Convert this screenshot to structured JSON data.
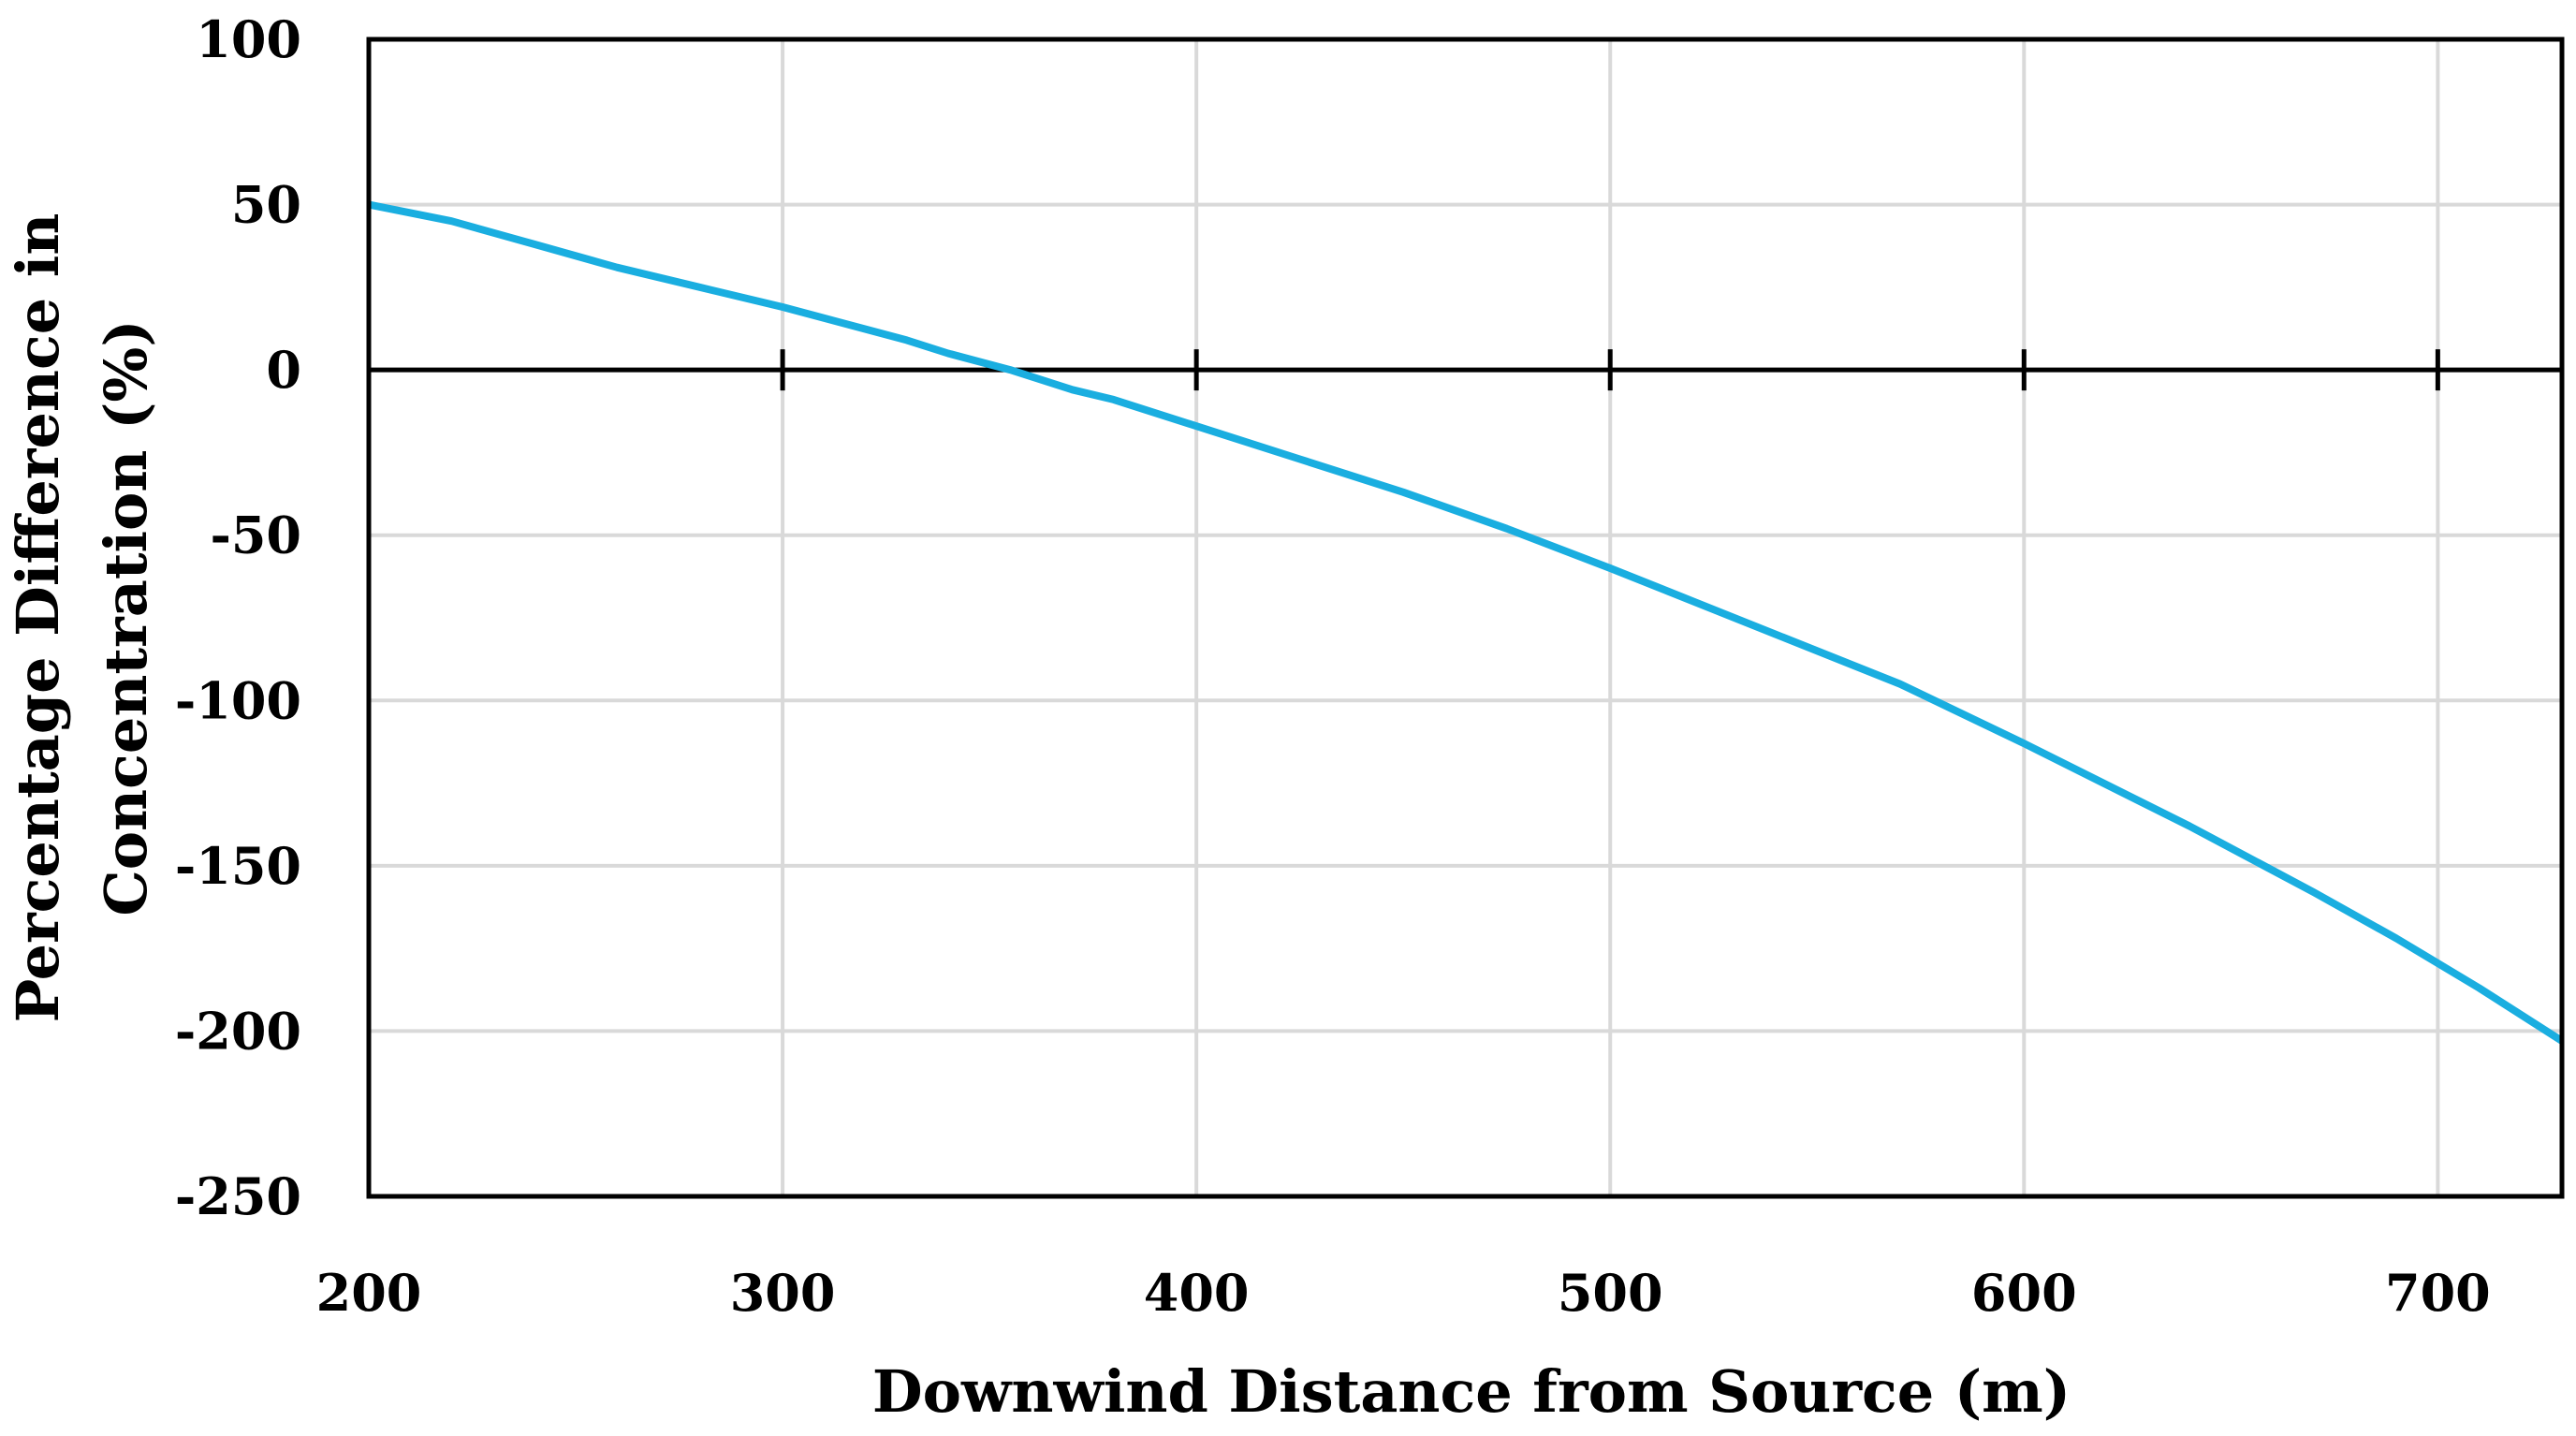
{
  "chart_data": {
    "type": "line",
    "title": "",
    "xlabel": "Downwind Distance from Source (m)",
    "ylabel_lines": [
      "Percentage Difference in",
      "Concentration (%)"
    ],
    "xlim": [
      200,
      730
    ],
    "ylim": [
      -250,
      100
    ],
    "x_ticks": [
      200,
      300,
      400,
      500,
      600,
      700
    ],
    "y_ticks": [
      100,
      50,
      0,
      -50,
      -100,
      -150,
      -200,
      -250
    ],
    "x_tick_labels": [
      "200",
      "300",
      "400",
      "500",
      "600",
      "700"
    ],
    "y_tick_labels": [
      "100",
      "50",
      "0",
      "-50",
      "-100",
      "-150",
      "-200",
      "-250"
    ],
    "grid": true,
    "legend": "none",
    "colors": {
      "series": "#1aaee0",
      "grid": "#d9d9d9",
      "axis": "#000000"
    },
    "series": [
      {
        "x": [
          200,
          220,
          240,
          260,
          280,
          300,
          330,
          340,
          355,
          370,
          380,
          400,
          425,
          450,
          475,
          500,
          520,
          540,
          570,
          600,
          640,
          670,
          690,
          710,
          730
        ],
        "y": [
          50,
          45,
          38,
          31,
          25,
          19,
          9,
          5,
          0,
          -6,
          -9,
          -17,
          -27,
          -37,
          -48,
          -60,
          -70,
          -80,
          -95,
          -113,
          -138,
          -158,
          -172,
          -187,
          -203
        ]
      }
    ]
  }
}
